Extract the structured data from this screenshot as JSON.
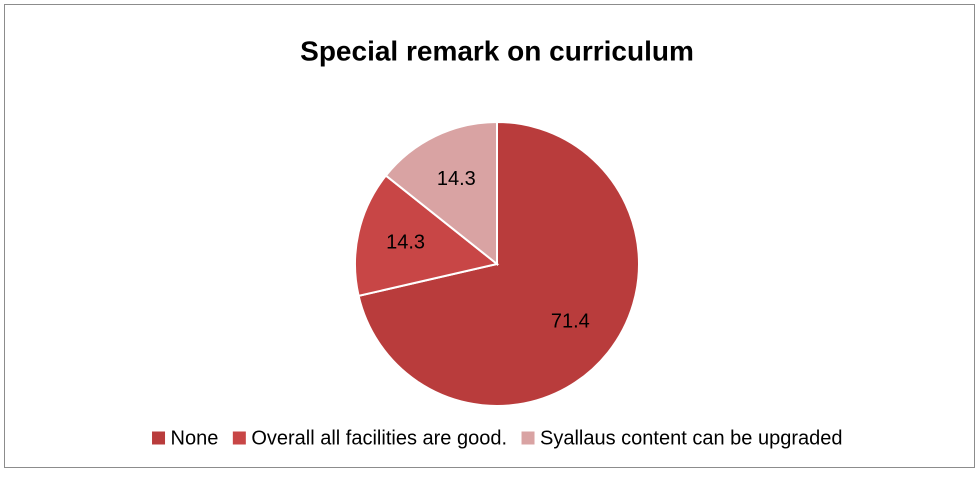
{
  "chart_data": {
    "type": "pie",
    "title": "Special remark on curriculum",
    "categories": [
      "None",
      "Overall all facilities are good.",
      "Syallaus content can be upgraded"
    ],
    "values": [
      71.4,
      14.3,
      14.3
    ],
    "colors": [
      "#b93c3c",
      "#c84646",
      "#d9a3a3"
    ],
    "legend": "bottom"
  }
}
